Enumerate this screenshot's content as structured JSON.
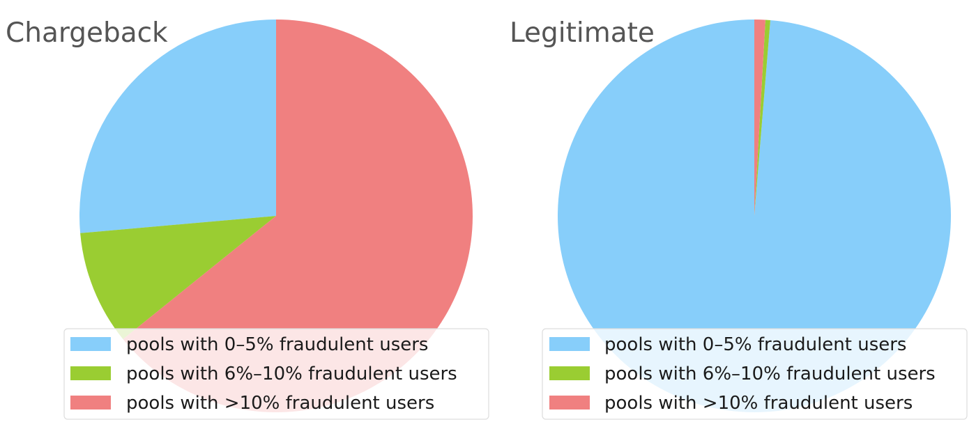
{
  "colors": {
    "pools_0_5": "#87cefa",
    "pools_6_10": "#9acd32",
    "pools_gt_10": "#f08080"
  },
  "chart_data": [
    {
      "type": "pie",
      "title": "Chargeback",
      "labels": [
        "pools with 0–5% fraudulent users",
        "pools with 6%–10% fraudulent users",
        "pools with >10% fraudulent users"
      ],
      "values": [
        26.4,
        9.4,
        64.2
      ],
      "colors": [
        "#87cefa",
        "#9acd32",
        "#f08080"
      ],
      "legend_position": "lower right"
    },
    {
      "type": "pie",
      "title": "Legitimate",
      "labels": [
        "pools with 0–5% fraudulent users",
        "pools with 6%–10% fraudulent users",
        "pools with >10% fraudulent users"
      ],
      "values": [
        98.7,
        0.4,
        0.9
      ],
      "colors": [
        "#87cefa",
        "#9acd32",
        "#f08080"
      ],
      "legend_position": "lower right"
    }
  ]
}
